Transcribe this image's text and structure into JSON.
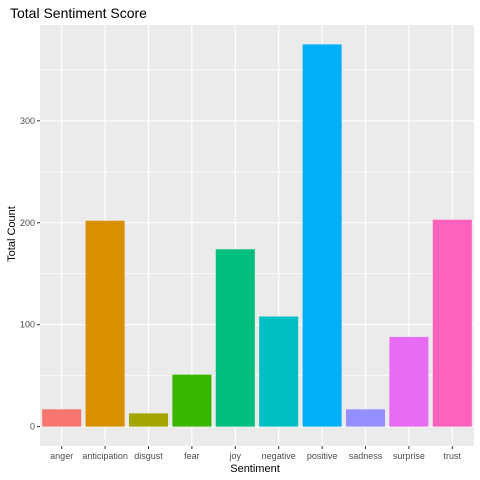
{
  "chart_data": {
    "type": "bar",
    "title": "Total Sentiment Score",
    "xlabel": "Sentiment",
    "ylabel": "Total Count",
    "categories": [
      "anger",
      "anticipation",
      "disgust",
      "fear",
      "joy",
      "negative",
      "positive",
      "sadness",
      "surprise",
      "trust"
    ],
    "values": [
      17,
      202,
      13,
      51,
      174,
      108,
      375,
      17,
      88,
      203
    ],
    "colors": [
      "#F8766D",
      "#D89000",
      "#A3A500",
      "#39B600",
      "#00BF7D",
      "#00BFC4",
      "#00B0F6",
      "#9590FF",
      "#E76BF3",
      "#FF62BC"
    ],
    "yticks": [
      0,
      100,
      200,
      300
    ],
    "ylim": [
      -19,
      394
    ],
    "grid": true,
    "legend": "none",
    "panel_background": "#EBEBEB",
    "grid_color": "#FFFFFF"
  }
}
